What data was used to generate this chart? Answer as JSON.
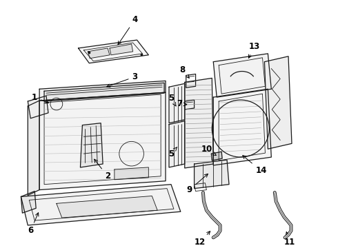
{
  "bg_color": "#ffffff",
  "line_color": "#1a1a1a",
  "label_color": "#000000",
  "label_fontsize": 8.5,
  "fig_width": 4.9,
  "fig_height": 3.6,
  "dpi": 100
}
